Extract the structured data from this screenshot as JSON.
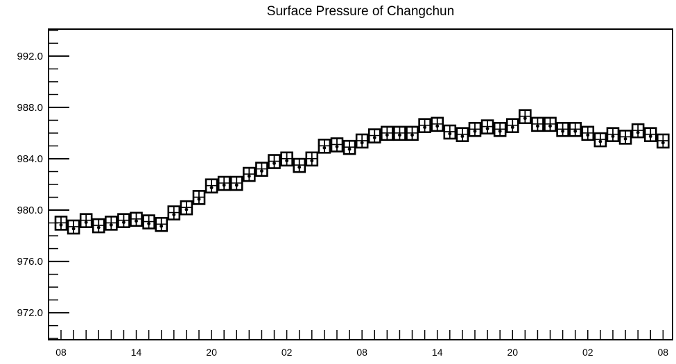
{
  "chart_data": {
    "type": "box",
    "title": "Surface Pressure of Changchun",
    "xlabel": "",
    "ylabel": "",
    "ylim": [
      969.9,
      994.1
    ],
    "y_ticks": [
      "992.0",
      "988.0",
      "984.0",
      "980.0",
      "976.0",
      "972.0"
    ],
    "x_tick_labels": [
      "08",
      "14",
      "20",
      "02",
      "08",
      "14",
      "20",
      "02",
      "08"
    ],
    "x_interval_hours": 1,
    "grid": false,
    "series": [
      {
        "values": [
          978.9,
          978.6,
          979.1,
          978.7,
          978.9,
          979.1,
          979.2,
          979.0,
          978.8,
          979.7,
          980.1,
          980.9,
          981.8,
          982.0,
          982.0,
          982.7,
          983.1,
          983.7,
          983.9,
          983.4,
          983.9,
          984.9,
          985.0,
          984.8,
          985.3,
          985.7,
          985.9,
          985.9,
          985.9,
          986.5,
          986.6,
          986.0,
          985.8,
          986.2,
          986.4,
          986.2,
          986.5,
          987.2,
          986.6,
          986.6,
          986.2,
          986.2,
          985.9,
          985.4,
          985.8,
          985.6,
          986.1,
          985.8,
          985.3
        ]
      }
    ]
  }
}
